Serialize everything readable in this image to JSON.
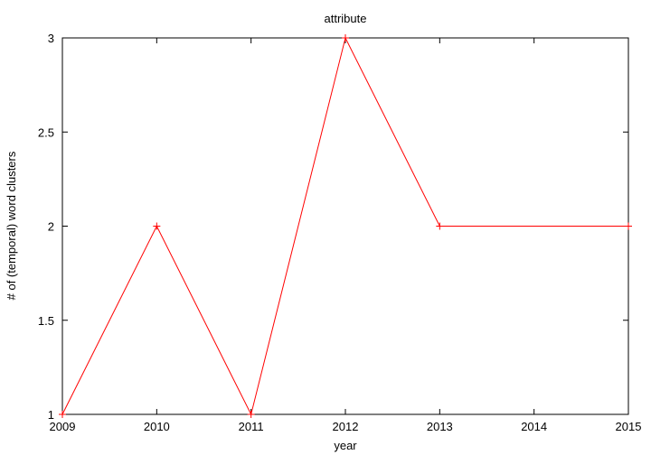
{
  "chart_data": {
    "type": "line",
    "title": "attribute",
    "xlabel": "year",
    "ylabel": "# of (temporal) word clusters",
    "xlim": [
      2009,
      2015
    ],
    "ylim": [
      1,
      3
    ],
    "x_ticks": [
      "2009",
      "2010",
      "2011",
      "2012",
      "2013",
      "2014",
      "2015"
    ],
    "y_ticks": [
      "1",
      "1.5",
      "2",
      "2.5",
      "3"
    ],
    "grid": false,
    "series": [
      {
        "color": "#ff0000",
        "marker": "plus",
        "points": [
          {
            "x": 2009,
            "y": 1
          },
          {
            "x": 2010,
            "y": 2
          },
          {
            "x": 2011,
            "y": 1
          },
          {
            "x": 2012,
            "y": 3
          },
          {
            "x": 2013,
            "y": 2
          },
          {
            "x": 2015,
            "y": 2
          }
        ]
      }
    ]
  }
}
